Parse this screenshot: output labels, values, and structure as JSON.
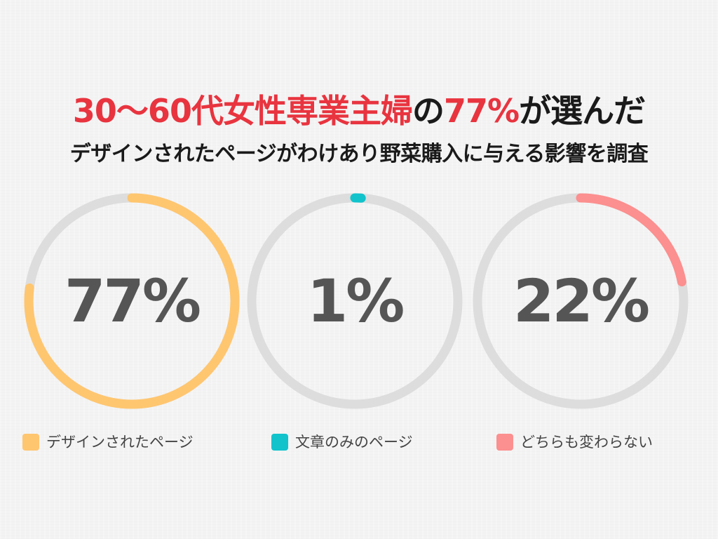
{
  "title": {
    "part1": "30〜60代女性専業主婦",
    "part2": "の",
    "part3": "77%",
    "part4": "が選んだ"
  },
  "subtitle": "デザインされたページがわけあり野菜購入に与える影響を調査",
  "colors": {
    "accent_red": "#e8343f",
    "track": "#dddddd",
    "value_text": "#555555"
  },
  "chart_data": {
    "type": "pie",
    "title": "30〜60代女性専業主婦の77%が選んだ",
    "subtitle": "デザインされたページがわけあり野菜購入に与える影響を調査",
    "style": "separate donut gauges, one per category, arcs drawn clockwise from 12 o'clock",
    "legend_position": "bottom",
    "categories": [
      "デザインされたページ",
      "文章のみのページ",
      "どちらも変わらない"
    ],
    "values": [
      77,
      1,
      22
    ],
    "value_labels": [
      "77%",
      "1%",
      "22%"
    ],
    "colors": [
      "#ffc670",
      "#12c3cc",
      "#fc8f8f"
    ]
  }
}
